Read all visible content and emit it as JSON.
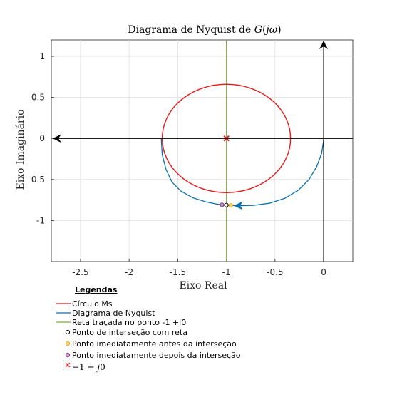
{
  "chart_data": {
    "type": "line",
    "title": "Diagrama de Nyquist de G(jω)",
    "xlabel": "Eixo Real",
    "ylabel": "Eixo Imaginário",
    "xlim": [
      -2.8,
      0.3
    ],
    "ylim": [
      -1.5,
      1.2
    ],
    "xticks": [
      -2.5,
      -2,
      -1.5,
      -1,
      -0.5,
      0
    ],
    "xtick_labels": [
      "-2.5",
      "-2",
      "-1.5",
      "-1",
      "-0.5",
      "0"
    ],
    "yticks": [
      -1,
      -0.5,
      0,
      0.5,
      1
    ],
    "ytick_labels": [
      "-1",
      "-0.5",
      "0",
      "0.5",
      "1"
    ],
    "grid": true,
    "legend_placement": "below",
    "legend_title": "Legendas",
    "series": [
      {
        "name": "Círculo Ms",
        "kind": "circle",
        "color": "#e8191b",
        "center": [
          -1,
          0
        ],
        "radius_x": 0.66,
        "radius_y": 0.66
      },
      {
        "name": "Diagrama de Nyquist",
        "kind": "curve",
        "color": "#0a71b1",
        "points": [
          [
            0,
            -0.02
          ],
          [
            -0.02,
            -0.18
          ],
          [
            -0.07,
            -0.34
          ],
          [
            -0.15,
            -0.5
          ],
          [
            -0.26,
            -0.63
          ],
          [
            -0.4,
            -0.73
          ],
          [
            -0.56,
            -0.79
          ],
          [
            -0.72,
            -0.815
          ],
          [
            -0.88,
            -0.82
          ],
          [
            -1.0,
            -0.815
          ],
          [
            -1.1,
            -0.8
          ],
          [
            -1.22,
            -0.77
          ],
          [
            -1.35,
            -0.72
          ],
          [
            -1.47,
            -0.64
          ],
          [
            -1.56,
            -0.53
          ],
          [
            -1.62,
            -0.38
          ],
          [
            -1.66,
            -0.2
          ],
          [
            -1.67,
            0.0
          ]
        ]
      },
      {
        "name": "Reta traçada no ponto -1 +j0",
        "kind": "vline",
        "color": "#77ac30",
        "x": -1
      },
      {
        "name": "Ponto de interseção com reta",
        "kind": "marker",
        "color": "#000000",
        "fill": "#ffffff",
        "point": [
          -1.0,
          -0.812
        ]
      },
      {
        "name": "Ponto imediatamente antes da interseção",
        "kind": "marker",
        "color": "#edb120",
        "fill": "#f6d27c",
        "point": [
          -0.955,
          -0.815
        ]
      },
      {
        "name": "Ponto imediatamente depois da interseção",
        "kind": "marker",
        "color": "#7e2f8e",
        "fill": "#c99ac9",
        "point": [
          -1.045,
          -0.808
        ]
      },
      {
        "name": "−1 + j0",
        "kind": "xmark",
        "color": "#e8191b",
        "point": [
          -1,
          0
        ]
      }
    ]
  }
}
